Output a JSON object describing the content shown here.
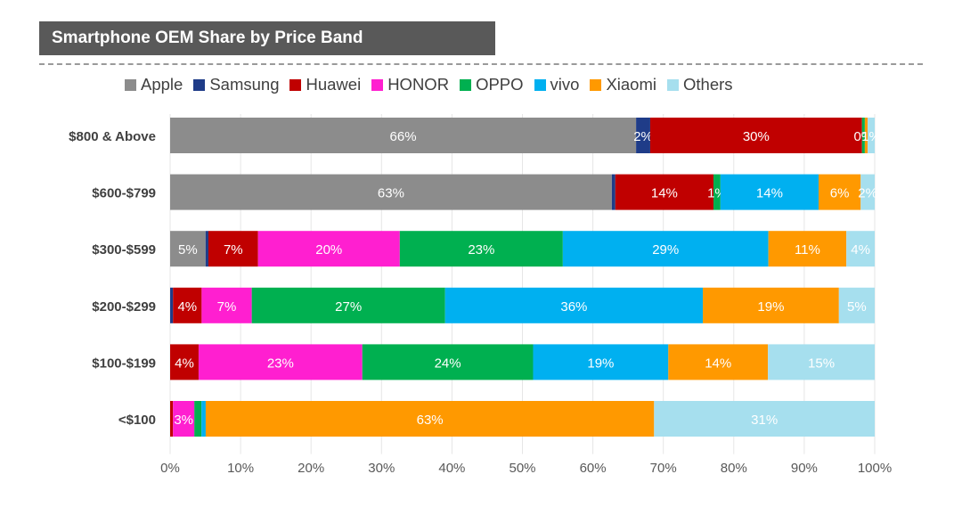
{
  "header": {
    "title": "Smartphone OEM Share by Price Band"
  },
  "chart_data": {
    "type": "bar",
    "orientation": "horizontal",
    "stacked": true,
    "title": "Smartphone OEM Share by Price Band",
    "categories": [
      "$800 & Above",
      "$600-$799",
      "$300-$599",
      "$200-$299",
      "$100-$199",
      "<$100"
    ],
    "series": [
      {
        "name": "Apple",
        "color": "#8c8c8c",
        "values": [
          66,
          63,
          5,
          0,
          0,
          0
        ],
        "labels": [
          "66%",
          "63%",
          "5%",
          "",
          "",
          ""
        ]
      },
      {
        "name": "Samsung",
        "color": "#1f3c88",
        "values": [
          2,
          0.5,
          0.4,
          0.4,
          0,
          0
        ],
        "labels": [
          "2%",
          "",
          "",
          "",
          "",
          ""
        ]
      },
      {
        "name": "Huawei",
        "color": "#c00000",
        "values": [
          30,
          14,
          7,
          4,
          4,
          0.4
        ],
        "labels": [
          "30%",
          "14%",
          "7%",
          "4%",
          "4%",
          ""
        ]
      },
      {
        "name": "HONOR",
        "color": "#ff1fd0",
        "values": [
          0,
          0,
          20,
          7,
          23,
          3
        ],
        "labels": [
          "",
          "",
          "20%",
          "7%",
          "23%",
          "3%"
        ]
      },
      {
        "name": "OPPO",
        "color": "#00b050",
        "values": [
          0.4,
          1,
          23,
          27,
          24,
          1
        ],
        "labels": [
          "0%",
          "1%",
          "23%",
          "27%",
          "24%",
          ""
        ]
      },
      {
        "name": "vivo",
        "color": "#00b0f0",
        "values": [
          0,
          14,
          29,
          36,
          19,
          0.6
        ],
        "labels": [
          "",
          "14%",
          "29%",
          "36%",
          "19%",
          ""
        ]
      },
      {
        "name": "Xiaomi",
        "color": "#ff9900",
        "values": [
          0.4,
          6,
          11,
          19,
          14,
          63
        ],
        "labels": [
          "",
          "6%",
          "11%",
          "19%",
          "14%",
          "63%"
        ]
      },
      {
        "name": "Others",
        "color": "#a6dfee",
        "values": [
          1,
          2,
          4,
          5,
          15,
          31
        ],
        "labels": [
          "1%",
          "2%",
          "4%",
          "5%",
          "15%",
          "31%"
        ]
      }
    ],
    "xlim": [
      0,
      100
    ],
    "x_ticks": [
      "0%",
      "10%",
      "20%",
      "30%",
      "40%",
      "50%",
      "60%",
      "70%",
      "80%",
      "90%",
      "100%"
    ],
    "grid": true,
    "legend_position": "top"
  }
}
